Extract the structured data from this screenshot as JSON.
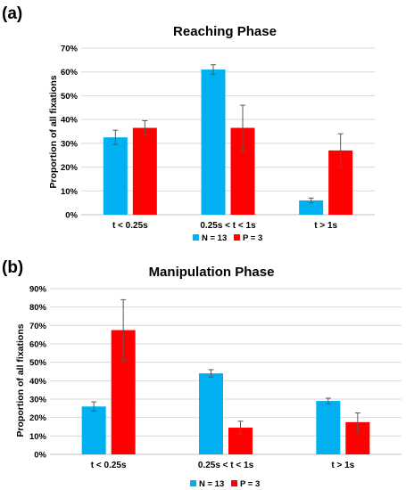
{
  "colors": {
    "n_series": "#00b0f0",
    "p_series": "#ff0000",
    "grid": "#d9d9d9",
    "axis": "#bfbfbf",
    "error_bar": "#595959"
  },
  "chart_data": [
    {
      "type": "bar",
      "panel_label": "(a)",
      "title": "Reaching Phase",
      "ylabel": "Proportion of all fixations",
      "xlabel": "",
      "categories": [
        "t < 0.25s",
        "0.25s < t < 1s",
        "t > 1s"
      ],
      "y_ticks": [
        "0%",
        "10%",
        "20%",
        "30%",
        "40%",
        "50%",
        "60%",
        "70%"
      ],
      "ylim": [
        0,
        70
      ],
      "grid": true,
      "legend_position": "bottom",
      "series": [
        {
          "name": "N = 13",
          "color": "#00b0f0",
          "values": [
            32.5,
            61,
            6
          ],
          "errors": [
            3,
            2,
            1
          ]
        },
        {
          "name": "P = 3",
          "color": "#ff0000",
          "values": [
            36.5,
            36.5,
            27
          ],
          "errors": [
            3,
            9.5,
            7
          ]
        }
      ]
    },
    {
      "type": "bar",
      "panel_label": "(b)",
      "title": "Manipulation Phase",
      "ylabel": "Proportion of all fixations",
      "xlabel": "",
      "categories": [
        "t < 0.25s",
        "0.25s < t < 1s",
        "t > 1s"
      ],
      "y_ticks": [
        "0%",
        "10%",
        "20%",
        "30%",
        "40%",
        "50%",
        "60%",
        "70%",
        "80%",
        "90%"
      ],
      "ylim": [
        0,
        90
      ],
      "grid": true,
      "legend_position": "bottom",
      "series": [
        {
          "name": "N = 13",
          "color": "#00b0f0",
          "values": [
            26,
            44,
            29
          ],
          "errors": [
            2.5,
            2,
            1.5
          ]
        },
        {
          "name": "P = 3",
          "color": "#ff0000",
          "values": [
            67.5,
            14.5,
            17.5
          ],
          "errors": [
            16.5,
            3.5,
            5
          ]
        }
      ]
    }
  ]
}
